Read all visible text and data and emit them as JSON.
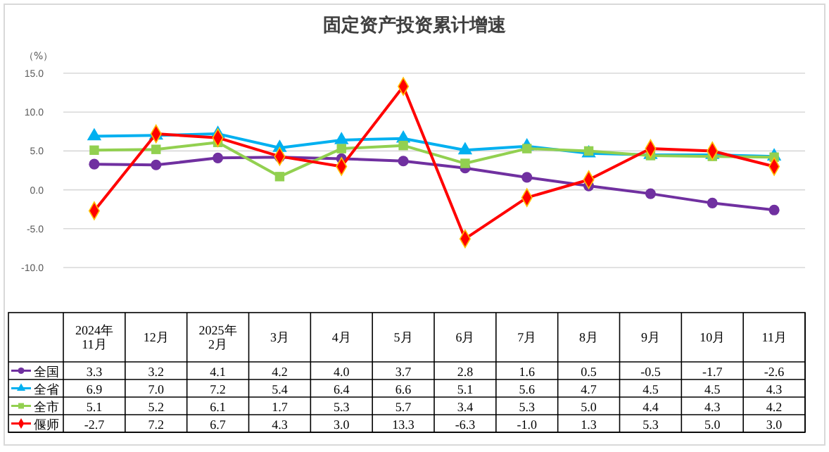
{
  "chart_data": {
    "type": "line",
    "title": "固定资产投资累计增速",
    "ylabel": "（%）",
    "categories": [
      "2024年\n11月",
      "12月",
      "2025年\n2月",
      "3月",
      "4月",
      "5月",
      "6月",
      "7月",
      "8月",
      "9月",
      "10月",
      "11月"
    ],
    "ylim": [
      -10,
      15
    ],
    "yticks": [
      {
        "value": -10,
        "label": "-10.0"
      },
      {
        "value": -5,
        "label": "-5.0"
      },
      {
        "value": 0,
        "label": "0.0"
      },
      {
        "value": 5,
        "label": "5.0"
      },
      {
        "value": 10,
        "label": "10.0"
      },
      {
        "value": 15,
        "label": "15.0"
      }
    ],
    "grid": "y",
    "legend": "bottom",
    "line_style": "solid",
    "series": [
      {
        "name": "全国",
        "color": "#7030a0",
        "marker": "circle",
        "values": [
          3.3,
          3.2,
          4.1,
          4.2,
          4.0,
          3.7,
          2.8,
          1.6,
          0.5,
          -0.5,
          -1.7,
          -2.6
        ],
        "value_labels": [
          "3.3",
          "3.2",
          "4.1",
          "4.2",
          "4.0",
          "3.7",
          "2.8",
          "1.6",
          "0.5",
          "-0.5",
          "-1.7",
          "-2.6"
        ]
      },
      {
        "name": "全省",
        "color": "#00b0f0",
        "marker": "triangle",
        "values": [
          6.9,
          7.0,
          7.2,
          5.4,
          6.4,
          6.6,
          5.1,
          5.6,
          4.7,
          4.5,
          4.5,
          4.3
        ],
        "value_labels": [
          "6.9",
          "7.0",
          "7.2",
          "5.4",
          "6.4",
          "6.6",
          "5.1",
          "5.6",
          "4.7",
          "4.5",
          "4.5",
          "4.3"
        ]
      },
      {
        "name": "全市",
        "color": "#92d050",
        "marker": "square",
        "values": [
          5.1,
          5.2,
          6.1,
          1.7,
          5.3,
          5.7,
          3.4,
          5.3,
          5.0,
          4.4,
          4.3,
          4.2
        ],
        "value_labels": [
          "5.1",
          "5.2",
          "6.1",
          "1.7",
          "5.3",
          "5.7",
          "3.4",
          "5.3",
          "5.0",
          "4.4",
          "4.3",
          "4.2"
        ]
      },
      {
        "name": "偃师",
        "color": "#ff0000",
        "marker": "diamond",
        "values": [
          -2.7,
          7.2,
          6.7,
          4.3,
          3.0,
          13.3,
          -6.3,
          -1.0,
          1.3,
          5.3,
          5.0,
          3.0
        ],
        "value_labels": [
          "-2.7",
          "7.2",
          "6.7",
          "4.3",
          "3.0",
          "13.3",
          "-6.3",
          "-1.0",
          "1.3",
          "5.3",
          "5.0",
          "3.0"
        ]
      }
    ]
  }
}
